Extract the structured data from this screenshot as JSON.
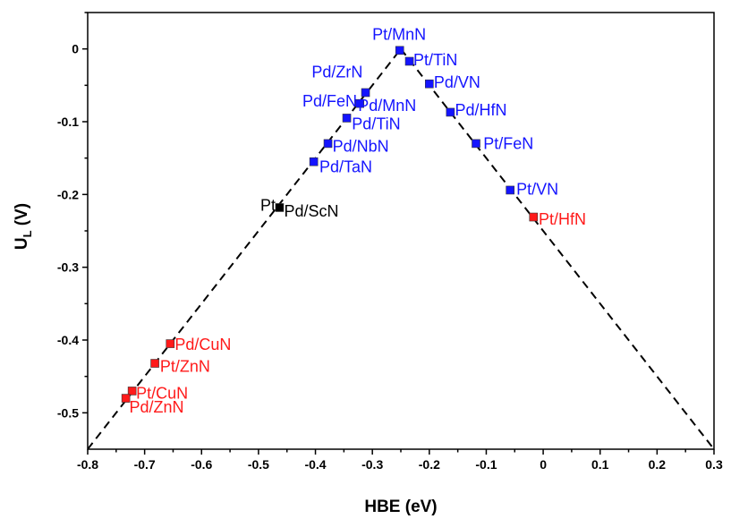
{
  "chart_data": {
    "type": "scatter",
    "title": "",
    "xlabel": "HBE (eV)",
    "ylabel_main": "U",
    "ylabel_sub": "L",
    "ylabel_unit": " (V)",
    "xlim": [
      -0.8,
      0.3
    ],
    "ylim": [
      -0.55,
      0.05
    ],
    "xticks": [
      -0.8,
      -0.7,
      -0.6,
      -0.5,
      -0.4,
      -0.3,
      -0.2,
      -0.1,
      0,
      0.1,
      0.2,
      0.3
    ],
    "xtick_labels": [
      "-0.8",
      "-0.7",
      "-0.6",
      "-0.5",
      "-0.4",
      "-0.3",
      "-0.2",
      "-0.1",
      "0",
      "0.1",
      "0.2",
      "0.3"
    ],
    "yticks": [
      0,
      -0.1,
      -0.2,
      -0.3,
      -0.4,
      -0.5
    ],
    "ytick_labels": [
      "0",
      "-0.1",
      "-0.2",
      "-0.3",
      "-0.4",
      "-0.5"
    ],
    "grid": false,
    "colors": {
      "blue": "#1414ff",
      "red": "#ff1a1a",
      "black": "#000000"
    },
    "volcano_lines": [
      {
        "x": [
          -0.8,
          -0.25
        ],
        "y": [
          -0.55,
          0.0
        ]
      },
      {
        "x": [
          -0.25,
          0.3
        ],
        "y": [
          0.0,
          -0.55
        ]
      }
    ],
    "points": [
      {
        "label": "Pt/MnN",
        "x": -0.252,
        "y": -0.002,
        "color": "blue",
        "lx": -0.3,
        "ly": 0.02,
        "anchor": "start"
      },
      {
        "label": "Pt/TiN",
        "x": -0.235,
        "y": -0.017,
        "color": "blue",
        "lx": -0.228,
        "ly": -0.015,
        "anchor": "start"
      },
      {
        "label": "Pd/VN",
        "x": -0.2,
        "y": -0.048,
        "color": "blue",
        "lx": -0.192,
        "ly": -0.046,
        "anchor": "start"
      },
      {
        "label": "Pd/HfN",
        "x": -0.163,
        "y": -0.087,
        "color": "blue",
        "lx": -0.155,
        "ly": -0.084,
        "anchor": "start"
      },
      {
        "label": "Pt/FeN",
        "x": -0.118,
        "y": -0.13,
        "color": "blue",
        "lx": -0.105,
        "ly": -0.13,
        "anchor": "start"
      },
      {
        "label": "Pt/VN",
        "x": -0.058,
        "y": -0.194,
        "color": "blue",
        "lx": -0.047,
        "ly": -0.193,
        "anchor": "start"
      },
      {
        "label": "Pt/HfN",
        "x": -0.017,
        "y": -0.231,
        "color": "red",
        "lx": -0.008,
        "ly": -0.234,
        "anchor": "start"
      },
      {
        "label": "Pd/ZrN",
        "x": -0.312,
        "y": -0.06,
        "color": "blue",
        "lx": -0.317,
        "ly": -0.032,
        "anchor": "end"
      },
      {
        "label": "Pd/FeN",
        "x": -0.322,
        "y": -0.075,
        "color": "blue",
        "lx": -0.327,
        "ly": -0.072,
        "anchor": "end"
      },
      {
        "label": "Pd/MnN",
        "x": -0.322,
        "y": -0.075,
        "color": "blue",
        "lx": -0.325,
        "ly": -0.078,
        "anchor": "start"
      },
      {
        "label": "Pd/TiN",
        "x": -0.345,
        "y": -0.095,
        "color": "blue",
        "lx": -0.336,
        "ly": -0.103,
        "anchor": "start"
      },
      {
        "label": "Pd/NbN",
        "x": -0.378,
        "y": -0.13,
        "color": "blue",
        "lx": -0.37,
        "ly": -0.134,
        "anchor": "start"
      },
      {
        "label": "Pd/TaN",
        "x": -0.403,
        "y": -0.155,
        "color": "blue",
        "lx": -0.393,
        "ly": -0.162,
        "anchor": "start"
      },
      {
        "label": "Pt",
        "x": -0.463,
        "y": -0.218,
        "color": "black",
        "lx": -0.47,
        "ly": -0.215,
        "anchor": "end"
      },
      {
        "label": "Pd/ScN",
        "x": -0.463,
        "y": -0.218,
        "color": "black",
        "lx": -0.455,
        "ly": -0.223,
        "anchor": "start"
      },
      {
        "label": "Pd/CuN",
        "x": -0.655,
        "y": -0.405,
        "color": "red",
        "lx": -0.647,
        "ly": -0.406,
        "anchor": "start"
      },
      {
        "label": "Pt/ZnN",
        "x": -0.682,
        "y": -0.432,
        "color": "red",
        "lx": -0.673,
        "ly": -0.436,
        "anchor": "start"
      },
      {
        "label": "Pt/CuN",
        "x": -0.722,
        "y": -0.47,
        "color": "red",
        "lx": -0.715,
        "ly": -0.473,
        "anchor": "start"
      },
      {
        "label": "Pd/ZnN",
        "x": -0.733,
        "y": -0.48,
        "color": "red",
        "lx": -0.727,
        "ly": -0.492,
        "anchor": "start"
      }
    ]
  }
}
